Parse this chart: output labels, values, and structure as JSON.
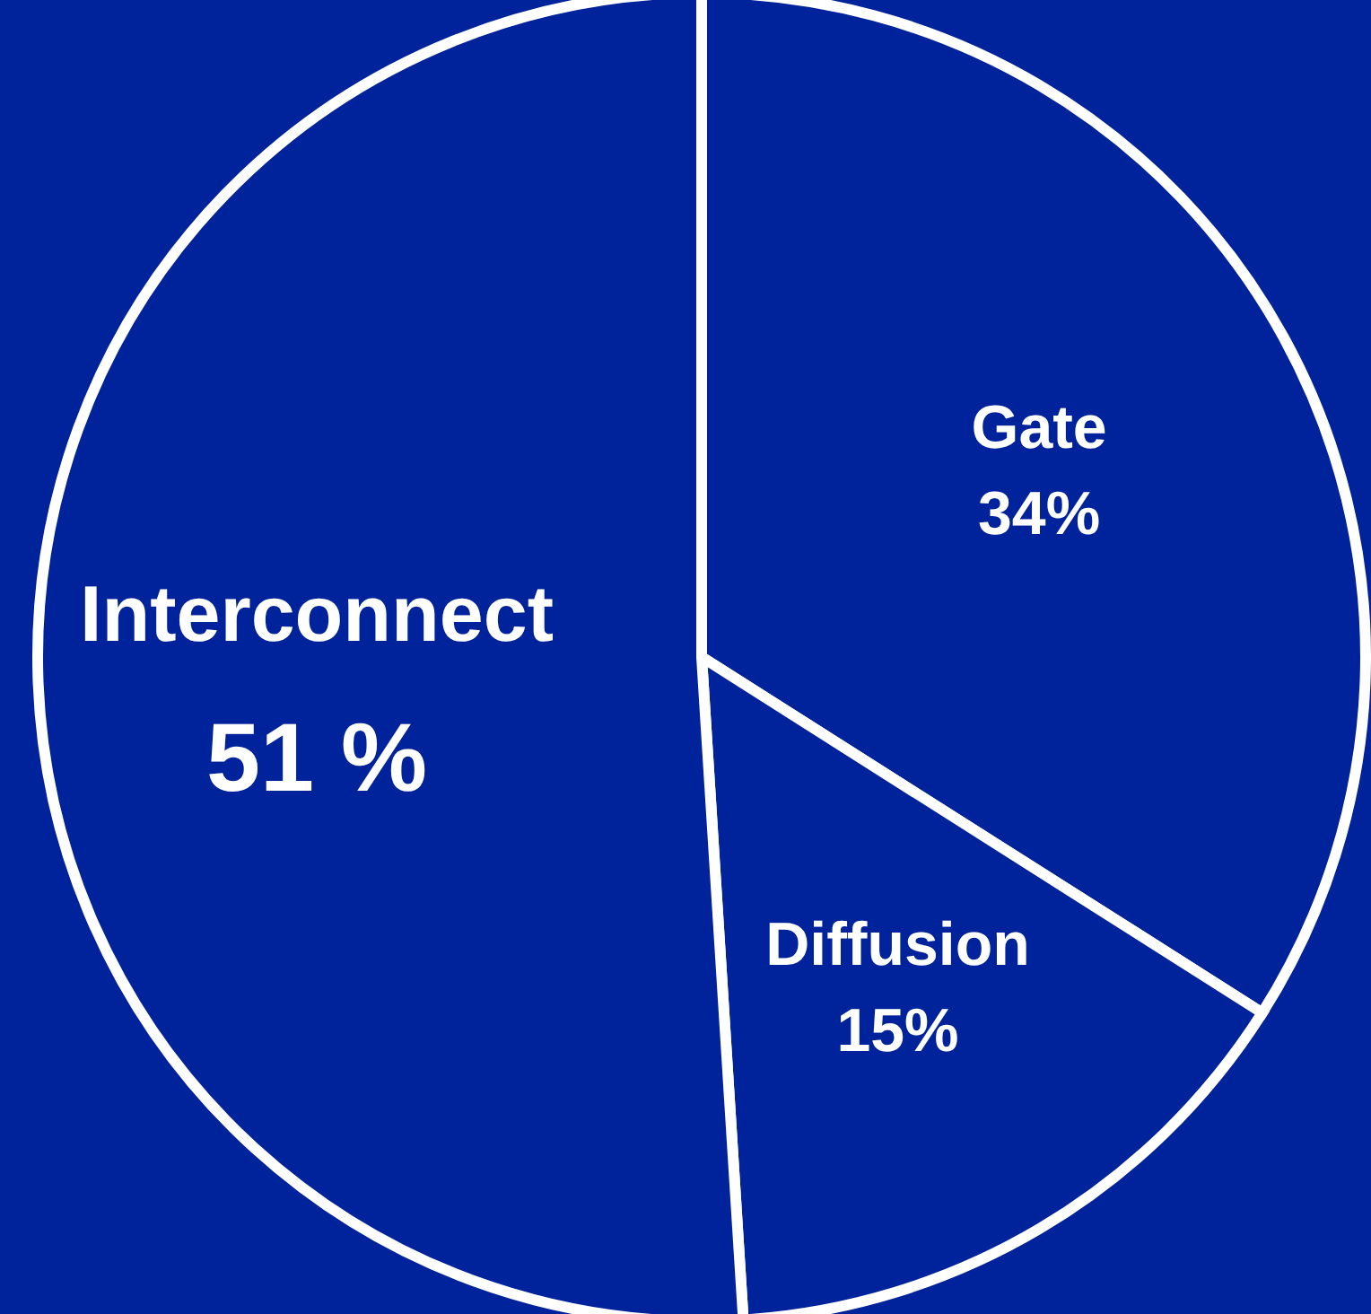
{
  "chart_data": {
    "type": "pie",
    "categories": [
      "Gate",
      "Diffusion",
      "Interconnect"
    ],
    "values": [
      34,
      15,
      51
    ],
    "colors": [
      "#00239c",
      "#00239c",
      "#00239c"
    ],
    "value_labels": [
      "34%",
      "15%",
      "51 %"
    ]
  }
}
